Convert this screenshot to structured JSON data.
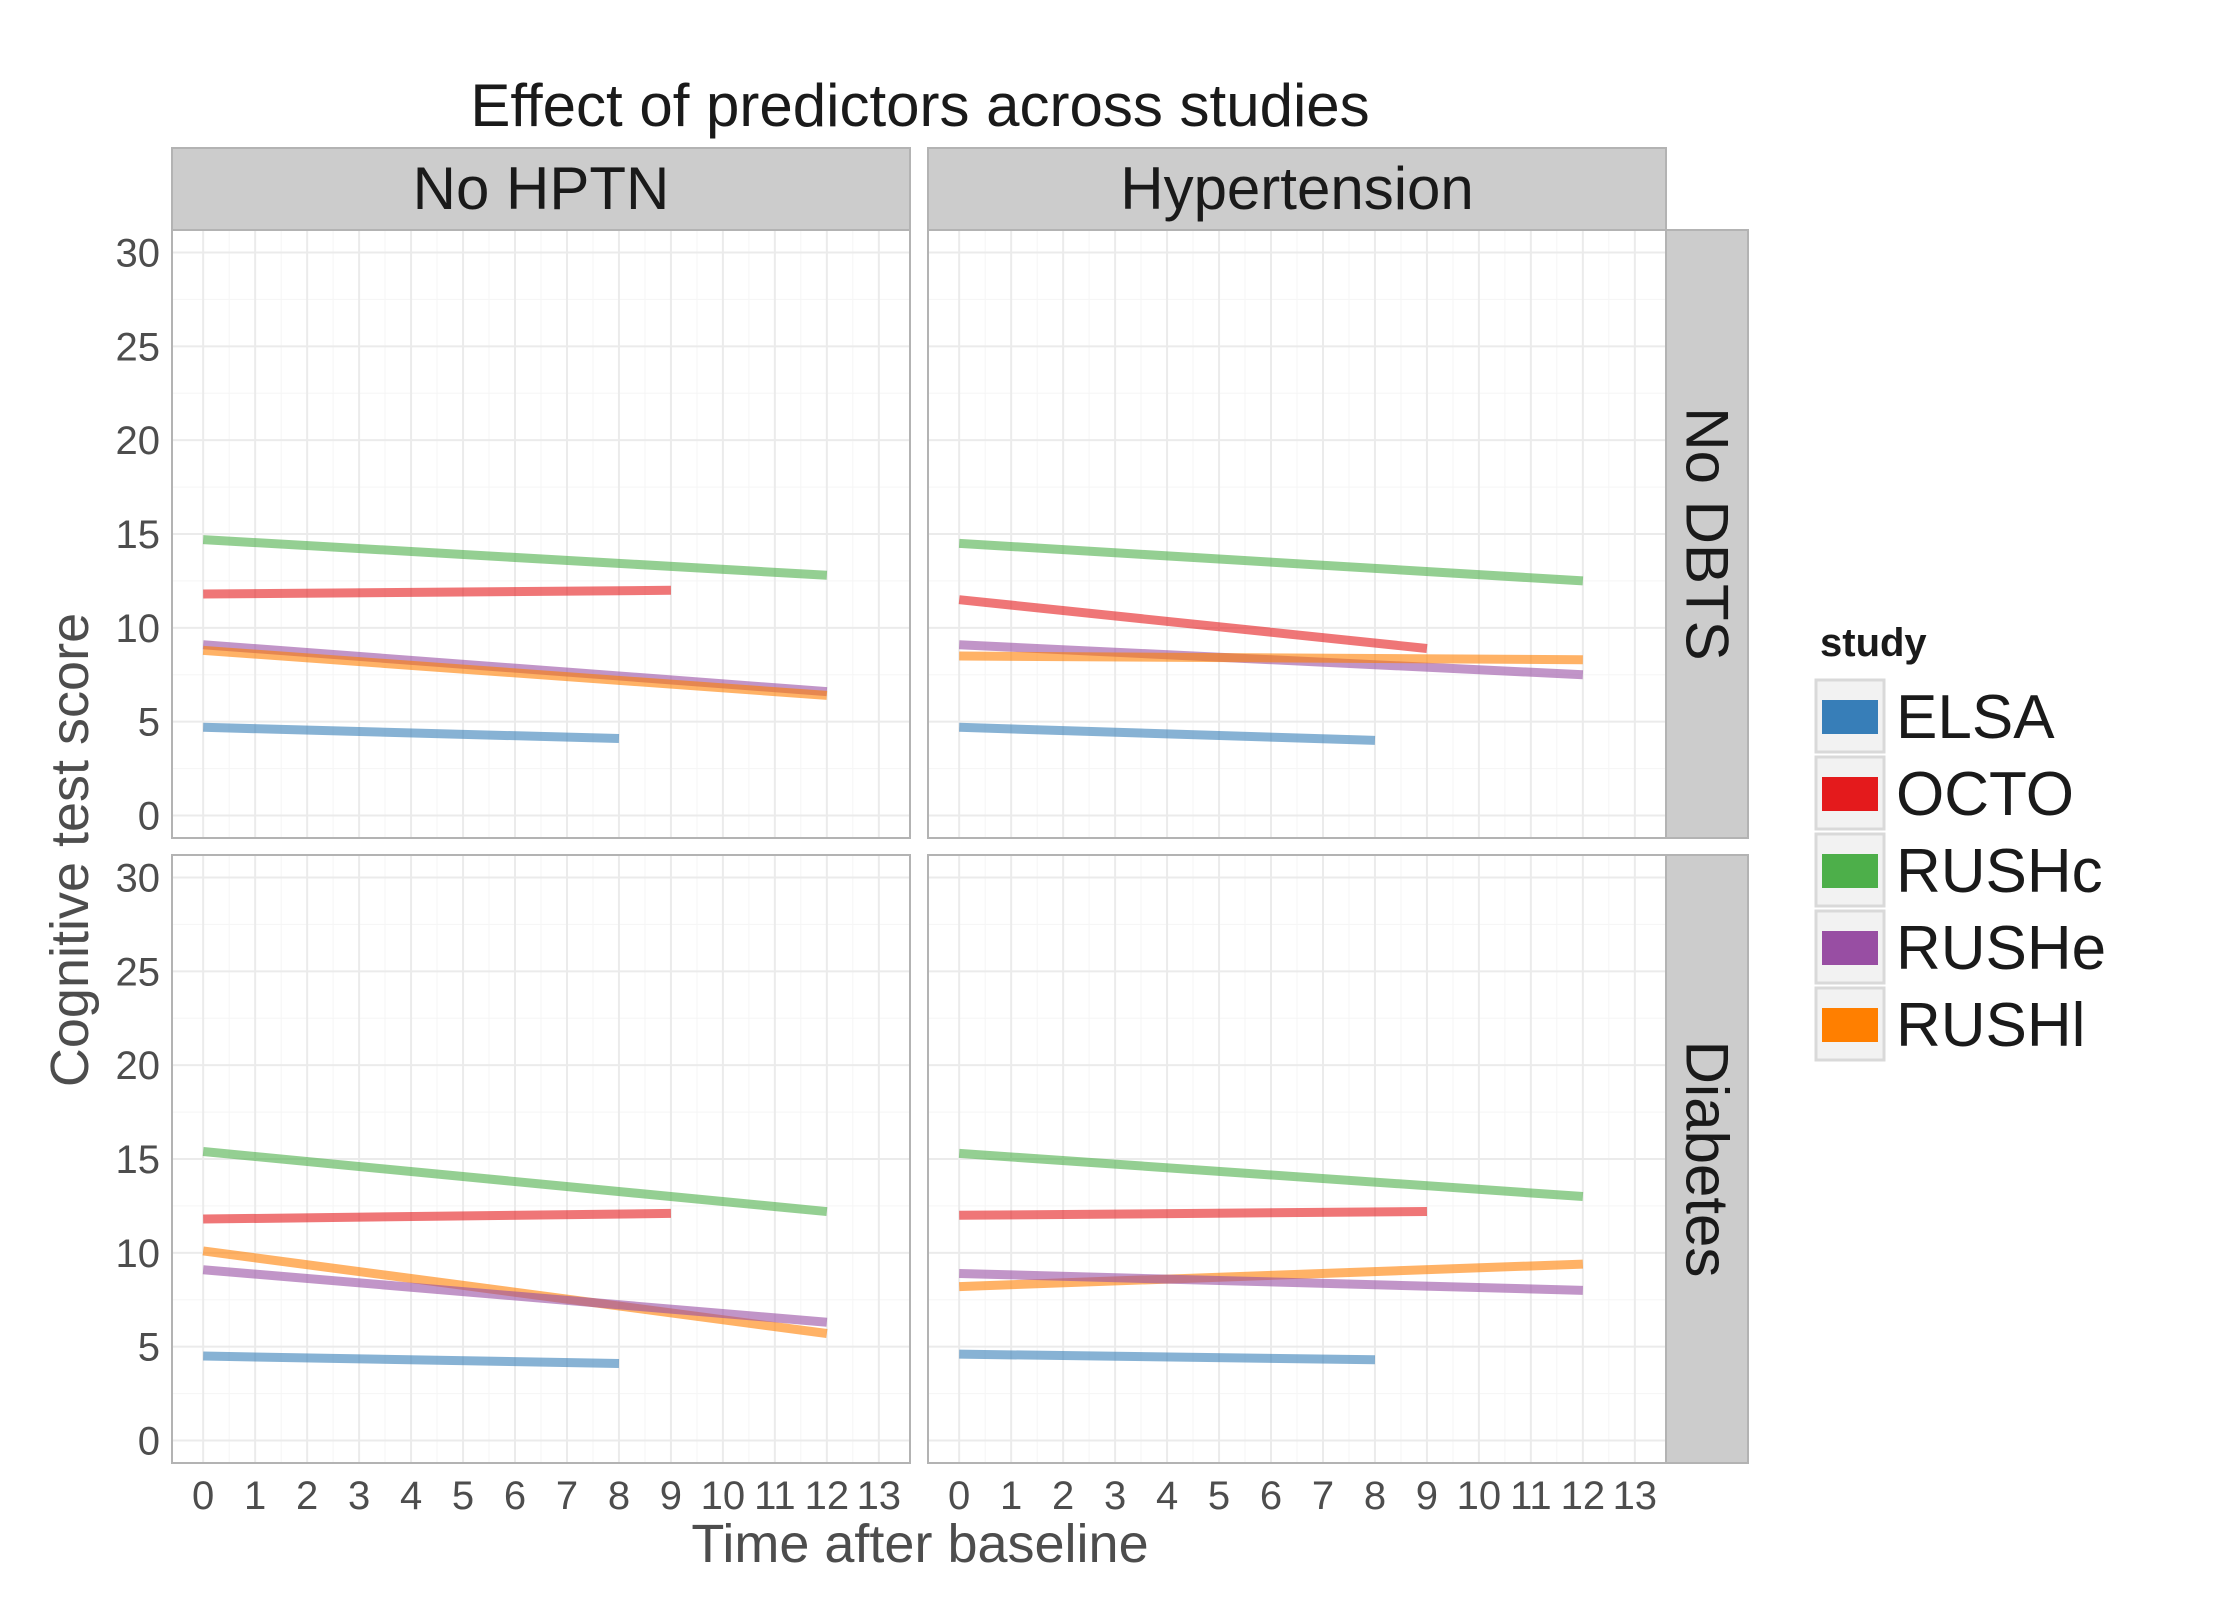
{
  "chart_data": {
    "type": "line",
    "title": "Effect of predictors across studies",
    "xlabel": "Time after baseline",
    "ylabel": "Cognitive test score",
    "xlim": [
      -0.6,
      13.6
    ],
    "ylim": [
      -1.2,
      31.2
    ],
    "x_ticks": [
      0,
      1,
      2,
      3,
      4,
      5,
      6,
      7,
      8,
      9,
      10,
      11,
      12,
      13
    ],
    "y_ticks": [
      0,
      5,
      10,
      15,
      20,
      25,
      30
    ],
    "col_facets": [
      "No HPTN",
      "Hypertension"
    ],
    "row_facets": [
      "No DBTS",
      "Diabetes"
    ],
    "grid": true,
    "legend": {
      "title": "study",
      "position": "right",
      "entries": [
        {
          "name": "ELSA",
          "color": "#377EB8"
        },
        {
          "name": "OCTO",
          "color": "#E41A1C"
        },
        {
          "name": "RUSHc",
          "color": "#4DAF4A"
        },
        {
          "name": "RUSHe",
          "color": "#984EA3"
        },
        {
          "name": "RUSHl",
          "color": "#FF7F00"
        }
      ]
    },
    "panels": [
      {
        "row": "No DBTS",
        "col": "No HPTN",
        "series": [
          {
            "name": "RUSHc",
            "x": [
              0,
              12
            ],
            "y": [
              14.7,
              12.8
            ]
          },
          {
            "name": "OCTO",
            "x": [
              0,
              9
            ],
            "y": [
              11.8,
              12.0
            ]
          },
          {
            "name": "RUSHe",
            "x": [
              0,
              12
            ],
            "y": [
              9.1,
              6.6
            ]
          },
          {
            "name": "RUSHl",
            "x": [
              0,
              12
            ],
            "y": [
              8.8,
              6.4
            ]
          },
          {
            "name": "ELSA",
            "x": [
              0,
              8
            ],
            "y": [
              4.7,
              4.1
            ]
          }
        ]
      },
      {
        "row": "No DBTS",
        "col": "Hypertension",
        "series": [
          {
            "name": "RUSHc",
            "x": [
              0,
              12
            ],
            "y": [
              14.5,
              12.5
            ]
          },
          {
            "name": "OCTO",
            "x": [
              0,
              9
            ],
            "y": [
              11.5,
              8.9
            ]
          },
          {
            "name": "RUSHe",
            "x": [
              0,
              12
            ],
            "y": [
              9.1,
              7.5
            ]
          },
          {
            "name": "RUSHl",
            "x": [
              0,
              12
            ],
            "y": [
              8.5,
              8.3
            ]
          },
          {
            "name": "ELSA",
            "x": [
              0,
              8
            ],
            "y": [
              4.7,
              4.0
            ]
          }
        ]
      },
      {
        "row": "Diabetes",
        "col": "No HPTN",
        "series": [
          {
            "name": "RUSHc",
            "x": [
              0,
              12
            ],
            "y": [
              15.4,
              12.2
            ]
          },
          {
            "name": "OCTO",
            "x": [
              0,
              9
            ],
            "y": [
              11.8,
              12.1
            ]
          },
          {
            "name": "RUSHl",
            "x": [
              0,
              12
            ],
            "y": [
              10.1,
              5.7
            ]
          },
          {
            "name": "RUSHe",
            "x": [
              0,
              12
            ],
            "y": [
              9.1,
              6.3
            ]
          },
          {
            "name": "ELSA",
            "x": [
              0,
              8
            ],
            "y": [
              4.5,
              4.1
            ]
          }
        ]
      },
      {
        "row": "Diabetes",
        "col": "Hypertension",
        "series": [
          {
            "name": "RUSHc",
            "x": [
              0,
              12
            ],
            "y": [
              15.3,
              13.0
            ]
          },
          {
            "name": "OCTO",
            "x": [
              0,
              9
            ],
            "y": [
              12.0,
              12.2
            ]
          },
          {
            "name": "RUSHl",
            "x": [
              0,
              12
            ],
            "y": [
              8.2,
              9.4
            ]
          },
          {
            "name": "RUSHe",
            "x": [
              0,
              12
            ],
            "y": [
              8.9,
              8.0
            ]
          },
          {
            "name": "ELSA",
            "x": [
              0,
              8
            ],
            "y": [
              4.6,
              4.3
            ]
          }
        ]
      }
    ]
  }
}
